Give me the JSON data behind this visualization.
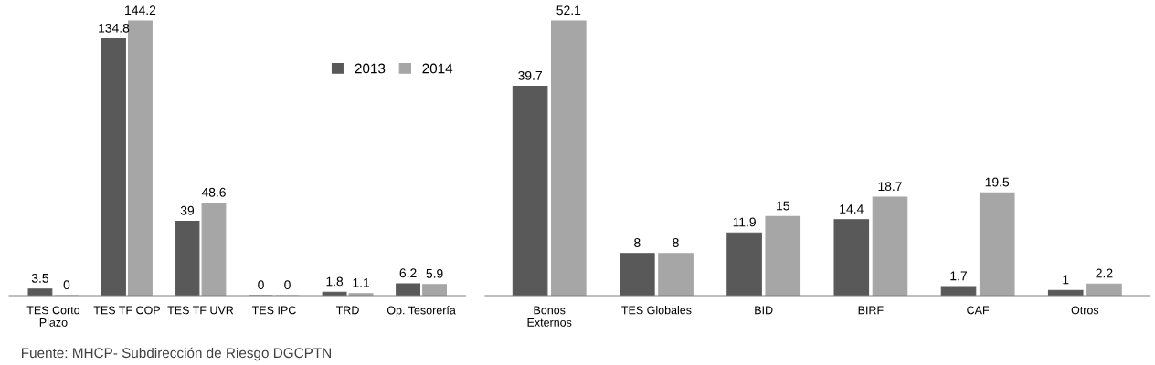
{
  "chart_data": [
    {
      "type": "bar",
      "categories": [
        "TES Corto\nPlazo",
        "TES TF COP",
        "TES TF UVR",
        "TES IPC",
        "TRD",
        "Op. Tesorería"
      ],
      "series": [
        {
          "name": "2013",
          "color": "#595959",
          "values": [
            3.5,
            134.8,
            39,
            0,
            1.8,
            6.2
          ]
        },
        {
          "name": "2014",
          "color": "#a6a6a6",
          "values": [
            0,
            144.2,
            48.6,
            0,
            1.1,
            5.9
          ]
        }
      ],
      "data_labels": true,
      "legend": "top right",
      "grid": false,
      "tick_labels": "x",
      "annotations": [
        "Fuente: MHCP- Subdirección de Riesgo DGCPTN"
      ]
    },
    {
      "type": "bar",
      "categories": [
        "Bonos\nExternos",
        "TES Globales",
        "BID",
        "BIRF",
        "CAF",
        "Otros"
      ],
      "series": [
        {
          "color": "#595959",
          "values": [
            39.7,
            8,
            11.9,
            14.4,
            1.7,
            1
          ]
        },
        {
          "color": "#a6a6a6",
          "values": [
            52.1,
            8,
            15,
            18.7,
            19.5,
            2.2
          ]
        }
      ],
      "data_labels": true,
      "grid": false,
      "tick_labels": "x"
    }
  ]
}
